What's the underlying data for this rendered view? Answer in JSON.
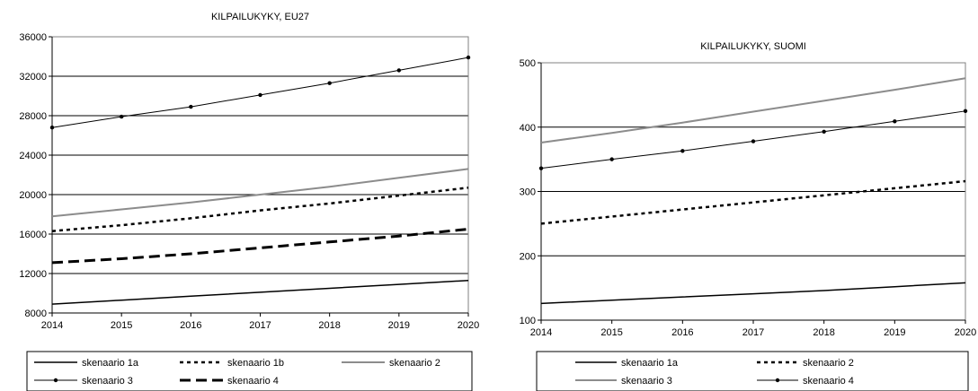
{
  "chart_data": [
    {
      "type": "line",
      "title": "KILPAILUKYKY, EU27",
      "xlabel": "",
      "ylabel": "",
      "x": [
        "2014",
        "2015",
        "2016",
        "2017",
        "2018",
        "2019",
        "2020"
      ],
      "ylim": [
        8000,
        36000
      ],
      "yticks": [
        "8000",
        "12000",
        "16000",
        "20000",
        "24000",
        "28000",
        "32000",
        "36000"
      ],
      "grid": true,
      "legend_position": "bottom",
      "series": [
        {
          "name": "skenaario 1a",
          "style": "solid-black",
          "values": [
            8900,
            9300,
            9700,
            10100,
            10500,
            10900,
            11300
          ]
        },
        {
          "name": "skenaario 1b",
          "style": "dotted-black",
          "values": [
            16300,
            16900,
            17600,
            18400,
            19100,
            19900,
            20700
          ]
        },
        {
          "name": "skenaario 2",
          "style": "solid-gray",
          "values": [
            17800,
            18500,
            19200,
            20000,
            20800,
            21700,
            22600
          ]
        },
        {
          "name": "skenaario 3",
          "style": "black-markers",
          "values": [
            26800,
            27900,
            28900,
            30100,
            31300,
            32600,
            33900
          ]
        },
        {
          "name": "skenaario 4",
          "style": "dashed-black",
          "values": [
            13100,
            13500,
            14000,
            14600,
            15200,
            15800,
            16500
          ]
        }
      ]
    },
    {
      "type": "line",
      "title": "KILPAILUKYKY, SUOMI",
      "xlabel": "",
      "ylabel": "",
      "x": [
        "2014",
        "2015",
        "2016",
        "2017",
        "2018",
        "2019",
        "2020"
      ],
      "ylim": [
        100,
        500
      ],
      "yticks": [
        "100",
        "200",
        "300",
        "400",
        "500"
      ],
      "grid": true,
      "legend_position": "bottom",
      "series": [
        {
          "name": "skenaario 1a",
          "style": "solid-black",
          "values": [
            126,
            131,
            136,
            141,
            146,
            152,
            158
          ]
        },
        {
          "name": "skenaario 2",
          "style": "dotted-black",
          "values": [
            250,
            261,
            272,
            283,
            294,
            305,
            316
          ]
        },
        {
          "name": "skenaario 3",
          "style": "solid-gray",
          "values": [
            376,
            391,
            407,
            424,
            441,
            458,
            476
          ]
        },
        {
          "name": "skenaario 4",
          "style": "black-markers",
          "values": [
            336,
            350,
            363,
            378,
            393,
            409,
            425
          ]
        }
      ]
    }
  ]
}
